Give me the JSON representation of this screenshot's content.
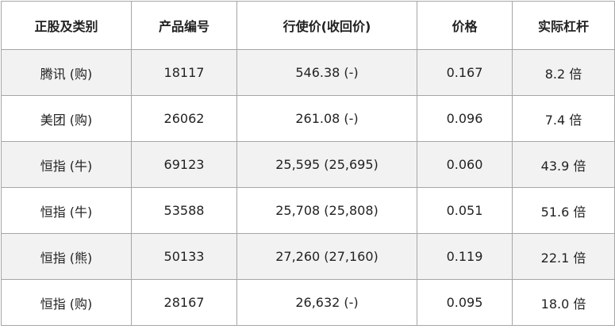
{
  "table": {
    "header": [
      "正股及类别",
      "产品编号",
      "行使价(收回价)",
      "价格",
      "实际杠杆"
    ],
    "rows": [
      [
        "腾讯 (购)",
        "18117",
        "546.38 (-)",
        "0.167",
        "8.2 倍"
      ],
      [
        "美团 (购)",
        "26062",
        "261.08 (-)",
        "0.096",
        "7.4 倍"
      ],
      [
        "恒指 (牛)",
        "69123",
        "25,595 (25,695)",
        "0.060",
        "43.9 倍"
      ],
      [
        "恒指 (牛)",
        "53588",
        "25,708 (25,808)",
        "0.051",
        "51.6 倍"
      ],
      [
        "恒指 (熊)",
        "50133",
        "27,260 (27,160)",
        "0.119",
        "22.1 倍"
      ],
      [
        "恒指 (购)",
        "28167",
        "26,632 (-)",
        "0.095",
        "18.0 倍"
      ]
    ]
  }
}
